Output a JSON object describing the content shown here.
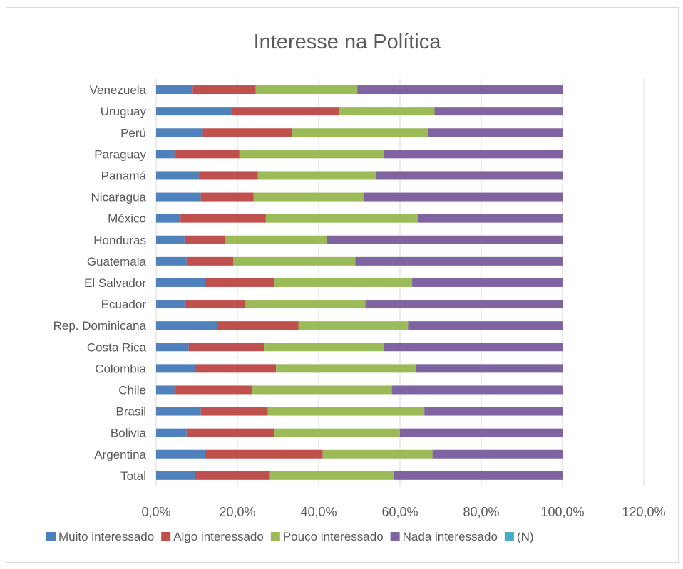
{
  "chart_data": {
    "type": "bar",
    "orientation": "horizontal",
    "stacked": true,
    "title": "Interesse na Política",
    "categories": [
      "Venezuela",
      "Uruguay",
      "Perú",
      "Paraguay",
      "Panamá",
      "Nicaragua",
      "México",
      "Honduras",
      "Guatemala",
      "El Salvador",
      "Ecuador",
      "Rep. Dominicana",
      "Costa Rica",
      "Colombia",
      "Chile",
      "Brasil",
      "Bolivia",
      "Argentina",
      "Total"
    ],
    "series": [
      {
        "name": "Muito interessado",
        "color": "#4f81bd",
        "values": [
          9.0,
          18.5,
          11.5,
          4.5,
          10.5,
          11.0,
          6.0,
          7.0,
          7.5,
          12.0,
          7.0,
          15.0,
          8.0,
          9.5,
          4.5,
          11.0,
          7.5,
          12.0,
          9.5
        ]
      },
      {
        "name": "Algo interessado",
        "color": "#c0504d",
        "values": [
          15.5,
          26.5,
          22.0,
          16.0,
          14.5,
          13.0,
          21.0,
          10.0,
          11.5,
          17.0,
          15.0,
          20.0,
          18.5,
          20.0,
          19.0,
          16.5,
          21.5,
          29.0,
          18.5
        ]
      },
      {
        "name": "Pouco interessado",
        "color": "#9bbb59",
        "values": [
          25.0,
          23.5,
          33.5,
          35.5,
          29.0,
          27.0,
          37.5,
          25.0,
          30.0,
          34.0,
          29.5,
          27.0,
          29.5,
          34.5,
          34.5,
          38.5,
          31.0,
          27.0,
          30.5
        ]
      },
      {
        "name": "Nada interessado",
        "color": "#8064a2",
        "values": [
          50.5,
          31.5,
          33.0,
          44.0,
          46.0,
          49.0,
          35.5,
          58.0,
          51.0,
          37.0,
          48.5,
          38.0,
          44.0,
          36.0,
          42.0,
          34.0,
          40.0,
          32.0,
          41.5
        ]
      },
      {
        "name": "(N)",
        "color": "#4bacc6",
        "values": [
          0,
          0,
          0,
          0,
          0,
          0,
          0,
          0,
          0,
          0,
          0,
          0,
          0,
          0,
          0,
          0,
          0,
          0,
          0
        ]
      }
    ],
    "x_ticks": [
      "0,0%",
      "20,0%",
      "40,0%",
      "60,0%",
      "80,0%",
      "100,0%",
      "120,0%"
    ],
    "xlim": [
      0,
      120
    ],
    "grid": "vertical",
    "legend_position": "bottom"
  }
}
